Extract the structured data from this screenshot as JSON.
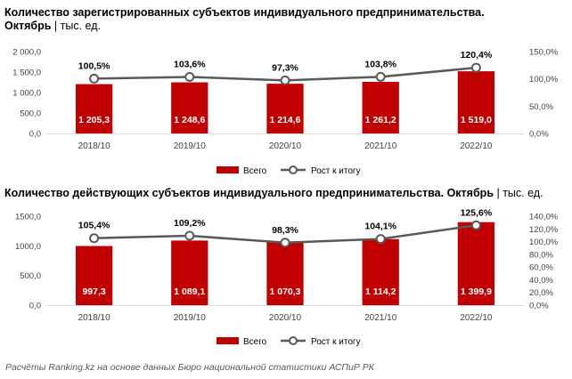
{
  "charts": [
    {
      "title_bold": "Количество зарегистрированных субъектов индивидуального предпринимательства.",
      "title_bold_line2": "Октябрь",
      "title_light": " | тыс. ед."
    },
    {
      "title_bold": "Количество действующих субъектов индивидуального предпринимательства. Октябрь",
      "title_light": " | тыс. ед."
    }
  ],
  "source": "Расчёты Ranking.kz на основе данных Бюро национальной статистики АСПиР РК",
  "colors": {
    "bar": "#c00000",
    "line": "#595959",
    "marker_fill": "#ffffff",
    "grid": "#d9d9d9"
  },
  "chart_data": [
    {
      "type": "bar",
      "categories": [
        "2018/10",
        "2019/10",
        "2020/10",
        "2021/10",
        "2022/10"
      ],
      "series": [
        {
          "name": "Всего",
          "type": "bar",
          "axis": "left",
          "values": [
            1205.3,
            1248.6,
            1214.6,
            1261.2,
            1519.0
          ],
          "labels": [
            "1 205,3",
            "1 248,6",
            "1 214,6",
            "1 261,2",
            "1 519,0"
          ]
        },
        {
          "name": "Рост к итогу",
          "type": "line",
          "axis": "right",
          "values": [
            100.5,
            103.6,
            97.3,
            103.8,
            120.4
          ],
          "labels": [
            "100,5%",
            "103,6%",
            "97,3%",
            "103,8%",
            "120,4%"
          ]
        }
      ],
      "ylim": [
        0,
        2000
      ],
      "yticks": [
        "0,0",
        "500,0",
        "1 000,0",
        "1 500,0",
        "2 000,0"
      ],
      "y2lim": [
        0,
        150
      ],
      "y2ticks": [
        "0,0%",
        "50,0%",
        "100,0%",
        "150,0%"
      ],
      "legend": "bottom",
      "grid": false
    },
    {
      "type": "bar",
      "categories": [
        "2018/10",
        "2019/10",
        "2020/10",
        "2021/10",
        "2022/10"
      ],
      "series": [
        {
          "name": "Всего",
          "type": "bar",
          "axis": "left",
          "values": [
            997.3,
            1089.1,
            1070.3,
            1114.2,
            1399.9
          ],
          "labels": [
            "997,3",
            "1 089,1",
            "1 070,3",
            "1 114,2",
            "1 399,9"
          ]
        },
        {
          "name": "Рост к итогу",
          "type": "line",
          "axis": "right",
          "values": [
            105.4,
            109.2,
            98.3,
            104.1,
            125.6
          ],
          "labels": [
            "105,4%",
            "109,2%",
            "98,3%",
            "104,1%",
            "125,6%"
          ]
        }
      ],
      "ylim": [
        0,
        1500
      ],
      "yticks": [
        "0,0",
        "500,0",
        "1000,0",
        "1500,0"
      ],
      "y2lim": [
        0,
        140
      ],
      "y2ticks": [
        "0,0%",
        "20,0%",
        "40,0%",
        "60,0%",
        "80,0%",
        "100,0%",
        "120,0%",
        "140,0%"
      ],
      "legend": "bottom",
      "grid": false
    }
  ]
}
